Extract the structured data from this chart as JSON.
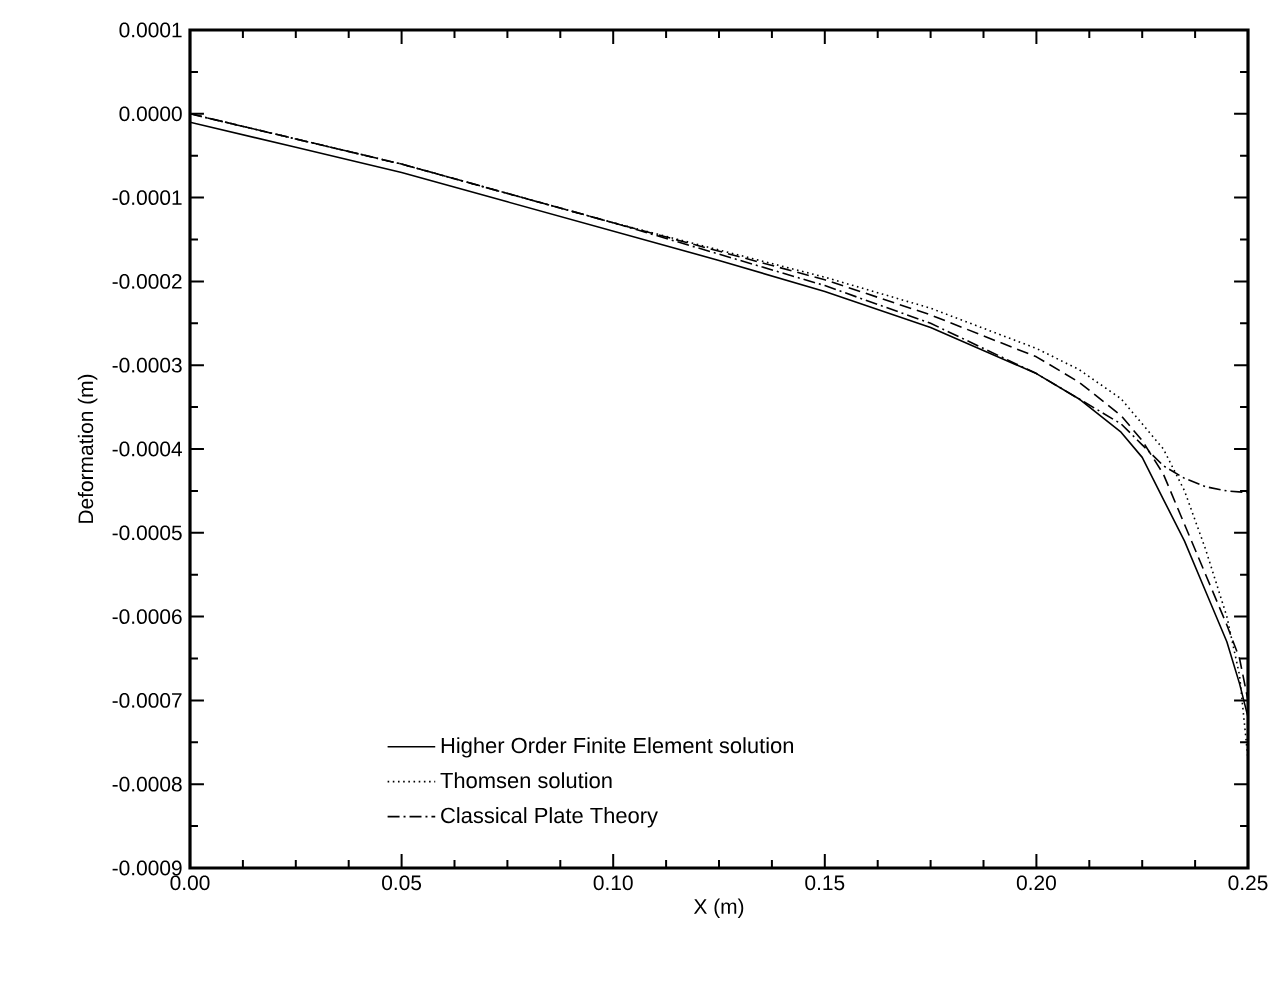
{
  "chart_data": {
    "type": "line",
    "xlabel": "X (m)",
    "ylabel": "Deformation (m)",
    "xlim": [
      0,
      0.25
    ],
    "ylim": [
      -0.0009,
      0.0001
    ],
    "xticks": [
      {
        "value": 0,
        "label": "0.00"
      },
      0.05,
      {
        "value": 0.1,
        "label": "0.10"
      },
      0.15,
      {
        "value": 0.2,
        "label": "0.20"
      },
      0.25
    ],
    "yticks": [
      0.0001,
      {
        "value": 0,
        "label": "0.0000"
      },
      -0.0001,
      -0.0002,
      -0.0003,
      -0.0004,
      -0.0005,
      -0.0006,
      -0.0007,
      -0.0008,
      -0.0009
    ],
    "legend": "bottom",
    "grid": false,
    "marker": "none",
    "series": [
      {
        "name": "Higher Order Finite Element solution",
        "color": "#000000",
        "line_style": "solid",
        "x": [
          0,
          0.025,
          0.05,
          0.075,
          0.1,
          0.125,
          0.15,
          0.175,
          0.2,
          0.21,
          0.22,
          0.225,
          0.23,
          0.235,
          0.24,
          0.245,
          0.248,
          0.25
        ],
        "values": [
          -1e-05,
          -4e-05,
          -7e-05,
          -0.000105,
          -0.00014,
          -0.000175,
          -0.000212,
          -0.000255,
          -0.00031,
          -0.00034,
          -0.00038,
          -0.00041,
          -0.00046,
          -0.00051,
          -0.00057,
          -0.00063,
          -0.00068,
          -0.00072
        ]
      },
      {
        "color": "#000000",
        "line_style": "dashed",
        "x": [
          0,
          0.05,
          0.1,
          0.15,
          0.175,
          0.2,
          0.21,
          0.22,
          0.225,
          0.23,
          0.235,
          0.24,
          0.245,
          0.248,
          0.25
        ],
        "values": [
          0.0,
          -6e-05,
          -0.00013,
          -0.000198,
          -0.00024,
          -0.00029,
          -0.00032,
          -0.00036,
          -0.00039,
          -0.00043,
          -0.00049,
          -0.00055,
          -0.00061,
          -0.00065,
          -0.0007
        ]
      },
      {
        "name": "Thomsen solution",
        "color": "#000000",
        "line_style": "dotted",
        "x": [
          0,
          0.05,
          0.1,
          0.15,
          0.175,
          0.2,
          0.21,
          0.22,
          0.23,
          0.235,
          0.24,
          0.245,
          0.248,
          0.25
        ],
        "values": [
          0.0,
          -6e-05,
          -0.00013,
          -0.000195,
          -0.000232,
          -0.00028,
          -0.000305,
          -0.00034,
          -0.0004,
          -0.00045,
          -0.00052,
          -0.0006,
          -0.00067,
          -0.00077
        ]
      },
      {
        "name": "Classical Plate Theory",
        "color": "#000000",
        "line_style": "dashdot",
        "x": [
          0,
          0.05,
          0.1,
          0.15,
          0.175,
          0.2,
          0.21,
          0.22,
          0.225,
          0.23,
          0.235,
          0.24,
          0.245,
          0.25
        ],
        "values": [
          0.0,
          -6e-05,
          -0.00013,
          -0.000205,
          -0.00025,
          -0.00031,
          -0.00034,
          -0.00037,
          -0.000395,
          -0.00042,
          -0.000435,
          -0.000445,
          -0.00045,
          -0.000452
        ]
      }
    ]
  }
}
